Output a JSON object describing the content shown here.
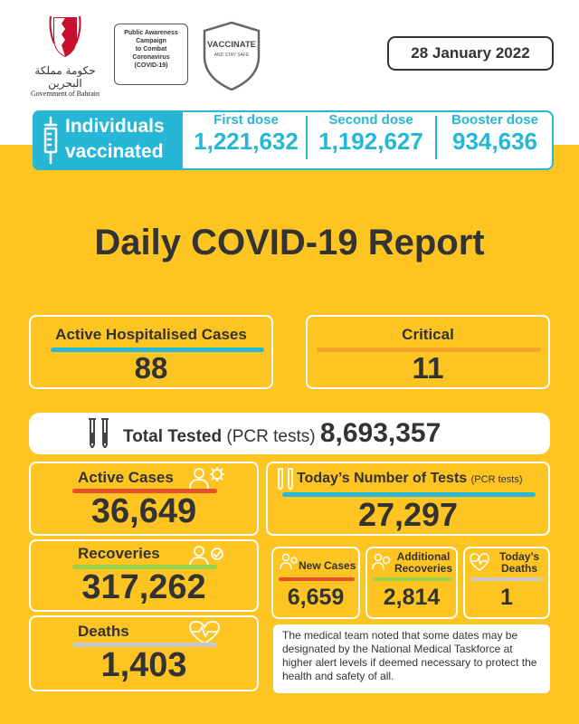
{
  "header": {
    "government_arabic": "حكومة مملكة البحرين",
    "government": "Government of Bahrain",
    "campaign": [
      "Public Awareness",
      "Campaign",
      "to Combat",
      "Coronavirus",
      "(COVID-19)"
    ],
    "vaccinate_title": "VACCINATE",
    "vaccinate_sub": "AND STAY SAFE",
    "date": "28 January 2022"
  },
  "vaccination": {
    "label_line1": "Individuals",
    "label_line2": "vaccinated",
    "doses": [
      {
        "title": "First dose",
        "value": "1,221,632"
      },
      {
        "title": "Second dose",
        "value": "1,192,627"
      },
      {
        "title": "Booster dose",
        "value": "934,636"
      }
    ]
  },
  "title": "Daily COVID-19 Report",
  "hospitalised": {
    "title": "Active Hospitalised Cases",
    "value": "88"
  },
  "critical": {
    "title": "Critical",
    "value": "11"
  },
  "tested": {
    "label": "Total Tested",
    "sub": "(PCR tests)",
    "value": "8,693,357"
  },
  "active": {
    "title": "Active Cases",
    "value": "36,649"
  },
  "recoveries": {
    "title": "Recoveries",
    "value": "317,262"
  },
  "deaths": {
    "title": "Deaths",
    "value": "1,403"
  },
  "today_tests": {
    "title": "Today’s Number of Tests",
    "sub": "(PCR tests)",
    "value": "27,297"
  },
  "new_cases": {
    "title": "New Cases",
    "value": "6,659"
  },
  "additional_recoveries": {
    "title_line1": "Additional",
    "title_line2": "Recoveries",
    "value": "2,814"
  },
  "today_deaths": {
    "title_line1": "Today’s",
    "title_line2": "Deaths",
    "value": "1"
  },
  "note": "The medical team noted that some dates may be designated by the National Medical Taskforce at higher alert levels if deemed necessary to protect the health and safety of all.",
  "colors": {
    "yellow": "#fdc422",
    "cyan": "#27b7d6",
    "orange": "#f6a428",
    "red": "#e8502a",
    "green": "#9cd24a",
    "gray": "#c9c9c9",
    "text": "#333333"
  },
  "icons": [
    "syringe-icon",
    "shield-icon",
    "test-tubes-icon",
    "person-virus-icon",
    "person-recover-icon",
    "heart-pulse-icon",
    "emblem-icon"
  ]
}
